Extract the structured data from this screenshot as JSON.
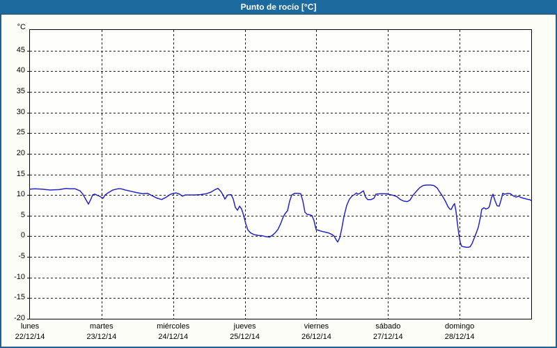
{
  "window": {
    "title": "Punto de rocío [°C]"
  },
  "colors": {
    "title_bar_bg": "#1d6a9e",
    "title_text": "#ffffff",
    "window_border": "#24608a",
    "background": "#fdfdf8",
    "plot_border": "#000000",
    "grid": "#1c1c1c",
    "series_line": "#2424c8"
  },
  "chart_data": {
    "type": "line",
    "title": "Punto de rocío [°C]",
    "ylabel": "°C",
    "ylim": [
      -20,
      50
    ],
    "y_tick_step": 5,
    "y_tick_labels": [
      45,
      40,
      35,
      30,
      25,
      20,
      15,
      10,
      5,
      0,
      -5,
      -10,
      -15,
      -20
    ],
    "grid": "dashed",
    "legend": "none",
    "x_range_days": [
      0,
      7
    ],
    "x_days": [
      {
        "name": "lunes",
        "date": "22/12/14"
      },
      {
        "name": "martes",
        "date": "23/12/14"
      },
      {
        "name": "miércoles",
        "date": "24/12/14"
      },
      {
        "name": "jueves",
        "date": "25/12/14"
      },
      {
        "name": "viernes",
        "date": "26/12/14"
      },
      {
        "name": "sábado",
        "date": "27/12/14"
      },
      {
        "name": "domingo",
        "date": "28/12/14"
      }
    ],
    "series": [
      {
        "name": "Punto de rocío",
        "color": "#2424c8",
        "points": [
          [
            0,
            11.4
          ],
          [
            0.068,
            11.5
          ],
          [
            0.165,
            11.4
          ],
          [
            0.282,
            11.2
          ],
          [
            0.408,
            11.3
          ],
          [
            0.506,
            11.6
          ],
          [
            0.554,
            11.5
          ],
          [
            0.632,
            11.5
          ],
          [
            0.7,
            11.0
          ],
          [
            0.739,
            10.2
          ],
          [
            0.778,
            9.0
          ],
          [
            0.817,
            7.8
          ],
          [
            0.846,
            8.8
          ],
          [
            0.875,
            10.0
          ],
          [
            0.904,
            10.2
          ],
          [
            0.943,
            9.9
          ],
          [
            0.972,
            9.7
          ],
          [
            1.0,
            9.4
          ],
          [
            1.021,
            9.2
          ],
          [
            1.05,
            10.0
          ],
          [
            1.089,
            10.5
          ],
          [
            1.157,
            11.2
          ],
          [
            1.225,
            11.5
          ],
          [
            1.274,
            11.5
          ],
          [
            1.332,
            11.2
          ],
          [
            1.41,
            10.9
          ],
          [
            1.487,
            10.6
          ],
          [
            1.575,
            10.3
          ],
          [
            1.643,
            10.4
          ],
          [
            1.721,
            9.7
          ],
          [
            1.779,
            9.2
          ],
          [
            1.838,
            8.9
          ],
          [
            1.896,
            9.4
          ],
          [
            1.954,
            10.1
          ],
          [
            2.003,
            10.4
          ],
          [
            2.042,
            10.5
          ],
          [
            2.09,
            10.2
          ],
          [
            2.129,
            9.7
          ],
          [
            2.168,
            10.0
          ],
          [
            2.226,
            10.0
          ],
          [
            2.304,
            10.0
          ],
          [
            2.382,
            10.1
          ],
          [
            2.46,
            10.3
          ],
          [
            2.528,
            10.7
          ],
          [
            2.586,
            11.3
          ],
          [
            2.625,
            11.6
          ],
          [
            2.664,
            10.9
          ],
          [
            2.693,
            10.1
          ],
          [
            2.722,
            9.0
          ],
          [
            2.761,
            10.0
          ],
          [
            2.81,
            10.1
          ],
          [
            2.839,
            9.0
          ],
          [
            2.868,
            7.0
          ],
          [
            2.897,
            6.3
          ],
          [
            2.927,
            7.3
          ],
          [
            2.956,
            6.6
          ],
          [
            2.985,
            5.0
          ],
          [
            3.014,
            3.0
          ],
          [
            3.043,
            1.5
          ],
          [
            3.082,
            0.8
          ],
          [
            3.131,
            0.4
          ],
          [
            3.189,
            0.2
          ],
          [
            3.247,
            0.1
          ],
          [
            3.296,
            -0.1
          ],
          [
            3.345,
            -0.2
          ],
          [
            3.383,
            0.2
          ],
          [
            3.422,
            0.8
          ],
          [
            3.461,
            1.6
          ],
          [
            3.5,
            3.0
          ],
          [
            3.539,
            4.8
          ],
          [
            3.568,
            5.6
          ],
          [
            3.597,
            6.2
          ],
          [
            3.626,
            8.5
          ],
          [
            3.656,
            10.0
          ],
          [
            3.695,
            10.4
          ],
          [
            3.743,
            10.4
          ],
          [
            3.782,
            10.3
          ],
          [
            3.811,
            8.5
          ],
          [
            3.84,
            5.8
          ],
          [
            3.87,
            5.3
          ],
          [
            3.908,
            5.2
          ],
          [
            3.938,
            5.0
          ],
          [
            3.967,
            3.8
          ],
          [
            3.996,
            1.6
          ],
          [
            4.035,
            1.4
          ],
          [
            4.074,
            1.2
          ],
          [
            4.122,
            1.0
          ],
          [
            4.171,
            0.8
          ],
          [
            4.22,
            0.4
          ],
          [
            4.249,
            0.0
          ],
          [
            4.278,
            -0.9
          ],
          [
            4.297,
            -1.4
          ],
          [
            4.327,
            -0.3
          ],
          [
            4.356,
            2.0
          ],
          [
            4.385,
            4.8
          ],
          [
            4.424,
            7.5
          ],
          [
            4.462,
            9.0
          ],
          [
            4.501,
            9.8
          ],
          [
            4.531,
            10.1
          ],
          [
            4.56,
            10.5
          ],
          [
            4.579,
            10.2
          ],
          [
            4.608,
            10.4
          ],
          [
            4.638,
            10.8
          ],
          [
            4.657,
            11.0
          ],
          [
            4.686,
            9.5
          ],
          [
            4.715,
            8.9
          ],
          [
            4.764,
            8.9
          ],
          [
            4.803,
            9.2
          ],
          [
            4.832,
            10.2
          ],
          [
            4.88,
            10.3
          ],
          [
            4.929,
            10.3
          ],
          [
            4.978,
            10.3
          ],
          [
            5.026,
            10.1
          ],
          [
            5.075,
            9.9
          ],
          [
            5.124,
            9.6
          ],
          [
            5.172,
            8.9
          ],
          [
            5.221,
            8.5
          ],
          [
            5.269,
            8.4
          ],
          [
            5.308,
            8.8
          ],
          [
            5.347,
            9.9
          ],
          [
            5.396,
            10.9
          ],
          [
            5.444,
            11.8
          ],
          [
            5.493,
            12.3
          ],
          [
            5.542,
            12.4
          ],
          [
            5.59,
            12.4
          ],
          [
            5.639,
            12.3
          ],
          [
            5.687,
            11.7
          ],
          [
            5.726,
            10.6
          ],
          [
            5.765,
            9.6
          ],
          [
            5.804,
            8.4
          ],
          [
            5.833,
            7.3
          ],
          [
            5.862,
            6.6
          ],
          [
            5.882,
            6.5
          ],
          [
            5.911,
            7.5
          ],
          [
            5.93,
            7.9
          ],
          [
            5.95,
            6.0
          ],
          [
            5.969,
            3.0
          ],
          [
            5.989,
            0.5
          ],
          [
            6.008,
            -1.5
          ],
          [
            6.027,
            -2.4
          ],
          [
            6.066,
            -2.6
          ],
          [
            6.105,
            -2.7
          ],
          [
            6.144,
            -2.6
          ],
          [
            6.173,
            -1.8
          ],
          [
            6.203,
            -0.5
          ],
          [
            6.232,
            0.8
          ],
          [
            6.261,
            2.2
          ],
          [
            6.29,
            4.6
          ],
          [
            6.309,
            6.5
          ],
          [
            6.339,
            6.9
          ],
          [
            6.368,
            6.6
          ],
          [
            6.397,
            6.8
          ],
          [
            6.416,
            7.2
          ],
          [
            6.446,
            9.4
          ],
          [
            6.465,
            10.2
          ],
          [
            6.494,
            8.6
          ],
          [
            6.523,
            7.4
          ],
          [
            6.553,
            7.3
          ],
          [
            6.582,
            9.0
          ],
          [
            6.601,
            10.4
          ],
          [
            6.63,
            10.2
          ],
          [
            6.669,
            10.4
          ],
          [
            6.708,
            10.3
          ],
          [
            6.747,
            9.8
          ],
          [
            6.786,
            9.5
          ],
          [
            6.825,
            9.7
          ],
          [
            6.854,
            9.4
          ],
          [
            6.893,
            9.2
          ],
          [
            6.941,
            9.0
          ],
          [
            6.99,
            8.8
          ],
          [
            7.0,
            8.6
          ]
        ]
      }
    ]
  }
}
